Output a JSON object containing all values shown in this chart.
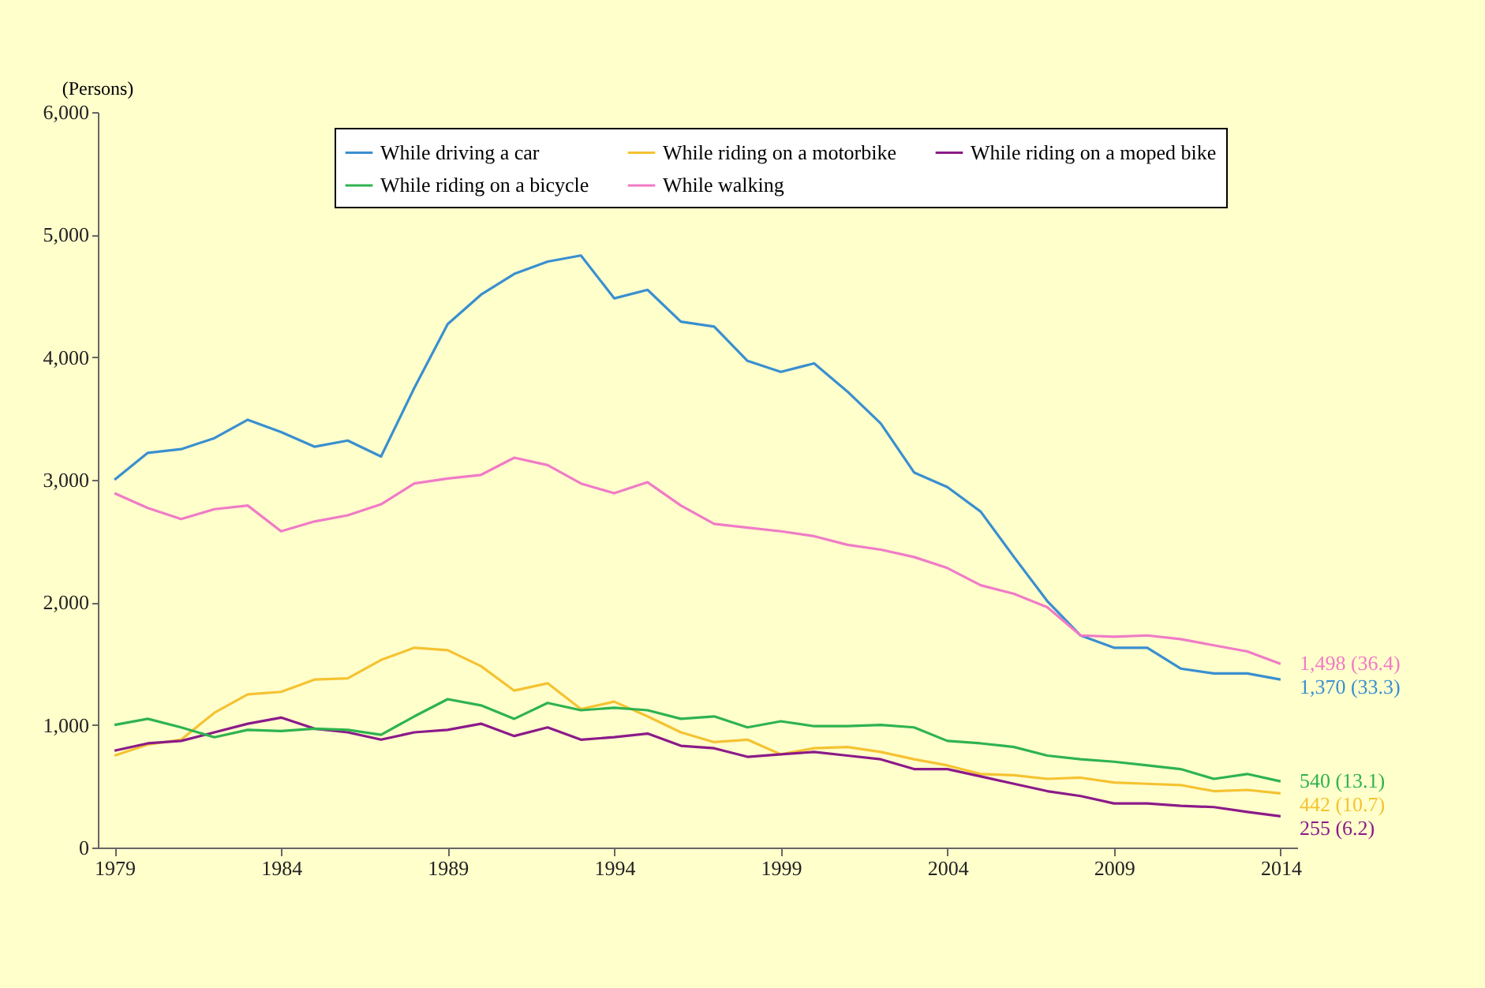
{
  "chart_data": {
    "type": "line",
    "ylabel": "(Persons)",
    "x": [
      1979,
      1980,
      1981,
      1982,
      1983,
      1984,
      1985,
      1986,
      1987,
      1988,
      1989,
      1990,
      1991,
      1992,
      1993,
      1994,
      1995,
      1996,
      1997,
      1998,
      1999,
      2000,
      2001,
      2002,
      2003,
      2004,
      2005,
      2006,
      2007,
      2008,
      2009,
      2010,
      2011,
      2012,
      2013,
      2014
    ],
    "series": [
      {
        "name": "While driving a car",
        "color": "#3a8fd0",
        "values": [
          3000,
          3220,
          3250,
          3340,
          3490,
          3390,
          3270,
          3320,
          3190,
          3750,
          4270,
          4510,
          4680,
          4780,
          4830,
          4480,
          4550,
          4290,
          4250,
          3970,
          3880,
          3950,
          3720,
          3460,
          3060,
          2940,
          2740,
          2370,
          2010,
          1730,
          1630,
          1630,
          1460,
          1420,
          1420,
          1370
        ]
      },
      {
        "name": "While riding on a motorbike",
        "color": "#f5c231",
        "values": [
          750,
          840,
          880,
          1100,
          1250,
          1270,
          1370,
          1380,
          1530,
          1630,
          1610,
          1480,
          1280,
          1340,
          1130,
          1190,
          1070,
          940,
          860,
          880,
          760,
          810,
          820,
          780,
          720,
          670,
          600,
          590,
          560,
          570,
          530,
          520,
          510,
          460,
          470,
          442
        ]
      },
      {
        "name": "While riding on a moped bike",
        "color": "#8b1a89",
        "values": [
          790,
          850,
          870,
          940,
          1010,
          1060,
          970,
          940,
          880,
          940,
          960,
          1010,
          910,
          980,
          880,
          900,
          930,
          830,
          810,
          740,
          760,
          780,
          750,
          720,
          640,
          640,
          580,
          520,
          460,
          420,
          360,
          360,
          340,
          330,
          290,
          255
        ]
      },
      {
        "name": "While riding on a bicycle",
        "color": "#2eb34f",
        "values": [
          1000,
          1050,
          980,
          900,
          960,
          950,
          970,
          960,
          920,
          1070,
          1210,
          1160,
          1050,
          1180,
          1120,
          1140,
          1120,
          1050,
          1070,
          980,
          1030,
          990,
          990,
          1000,
          980,
          870,
          850,
          820,
          750,
          720,
          700,
          670,
          640,
          560,
          600,
          540
        ]
      },
      {
        "name": "While walking",
        "color": "#f07bc6",
        "values": [
          2890,
          2770,
          2680,
          2760,
          2790,
          2580,
          2660,
          2710,
          2800,
          2970,
          3010,
          3040,
          3180,
          3120,
          2970,
          2890,
          2980,
          2790,
          2640,
          2610,
          2580,
          2540,
          2470,
          2430,
          2370,
          2280,
          2140,
          2070,
          1960,
          1730,
          1720,
          1730,
          1700,
          1650,
          1600,
          1498
        ]
      }
    ],
    "annotations": [
      "1,370 (33.3)",
      "442 (10.7)",
      "255 (6.2)",
      "540 (13.1)",
      "1,498 (36.4)"
    ],
    "xlim": [
      1978.5,
      2014.5
    ],
    "xticks": [
      1979,
      1984,
      1989,
      1994,
      1999,
      2004,
      2009,
      2014
    ],
    "ylim": [
      0,
      6000
    ],
    "yticks": [
      0,
      {
        "value": 1000,
        "label": "1,000"
      },
      {
        "value": 2000,
        "label": "2,000"
      },
      {
        "value": 3000,
        "label": "3,000"
      },
      {
        "value": 4000,
        "label": "4,000"
      },
      {
        "value": 5000,
        "label": "5,000"
      },
      {
        "value": 6000,
        "label": "6,000"
      }
    ],
    "grid": false,
    "legend": "top",
    "line_style": "solid",
    "marker": "none"
  }
}
